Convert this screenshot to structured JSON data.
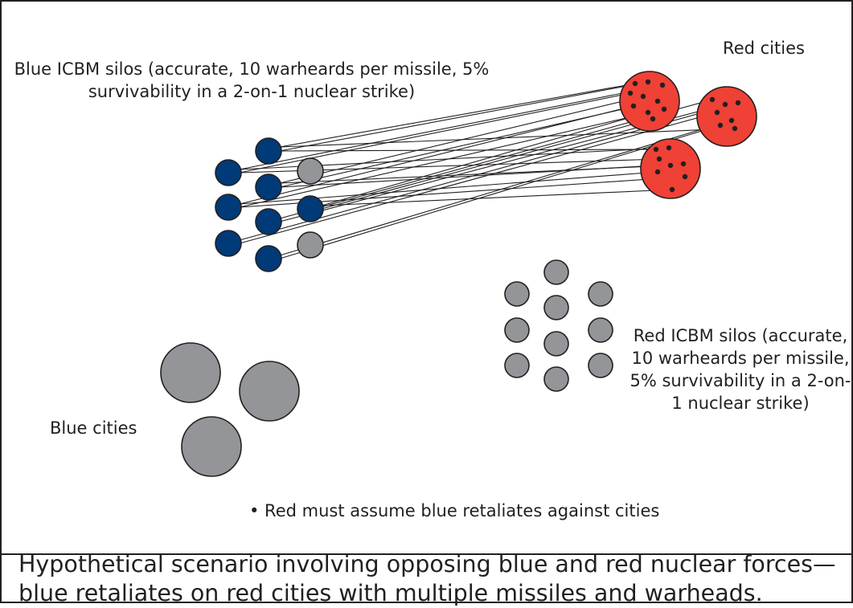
{
  "labels": {
    "blue_silos": "Blue ICBM silos (accurate, 10 warheards per missile, 5% survivability in a 2-on-1 nuclear strike)",
    "red_cities": "Red cities",
    "red_silos": "Red ICBM silos (accurate, 10 warheards per missile, 5% survivability in a 2-on-1 nuclear strike)",
    "blue_cities": "Blue cities",
    "note": "• Red must assume blue retaliates against cities"
  },
  "caption": "Hypothetical scenario involving opposing blue and red nuclear forces—blue retaliates on red cities with multiple missiles and warheads.",
  "colors": {
    "blue": "#003a78",
    "gray": "#939598",
    "red": "#ef4135",
    "ink": "#231f20"
  }
}
